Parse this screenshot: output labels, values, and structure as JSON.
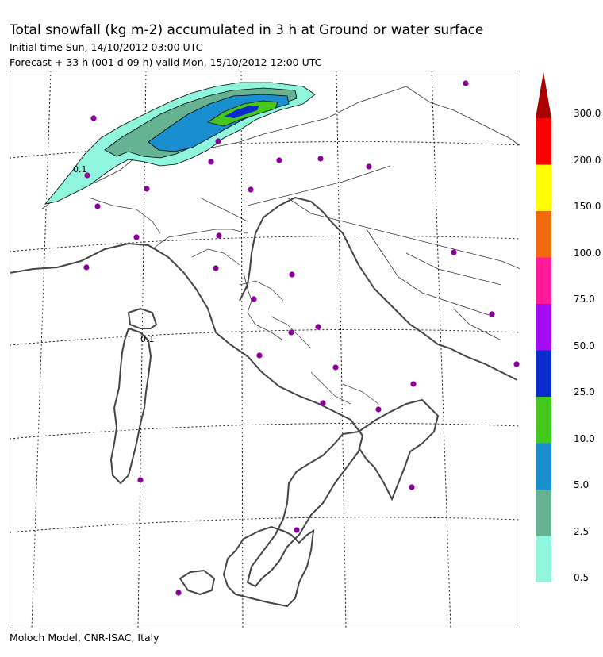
{
  "title": "Total snowfall (kg m-2) accumulated in   3 h at Ground or water surface",
  "initial_time": "Initial time  Sun, 14/10/2012  03:00 UTC",
  "forecast": "Forecast  +  33 h  (001 d 09 h)  valid Mon, 15/10/2012 12:00 UTC",
  "credit": "Moloch Model, CNR-ISAC, Italy",
  "map": {
    "contour_labels": [
      "0.1",
      "0.1"
    ],
    "city_marker_color": "#8b0099"
  },
  "legend": {
    "unit": "kg m-2",
    "levels": [
      {
        "label": "0.5",
        "color": "#8ff5dc"
      },
      {
        "label": "2.5",
        "color": "#66b394"
      },
      {
        "label": "5.0",
        "color": "#1a8fd0"
      },
      {
        "label": "10.0",
        "color": "#44c81c"
      },
      {
        "label": "25.0",
        "color": "#0a2ccc"
      },
      {
        "label": "50.0",
        "color": "#a30cf2"
      },
      {
        "label": "75.0",
        "color": "#ff1a99"
      },
      {
        "label": "100.0",
        "color": "#ee6a0a"
      },
      {
        "label": "150.0",
        "color": "#ffff00"
      },
      {
        "label": "200.0",
        "color": "#ff0000"
      },
      {
        "label": "300.0",
        "color": "#aa0000"
      }
    ]
  }
}
